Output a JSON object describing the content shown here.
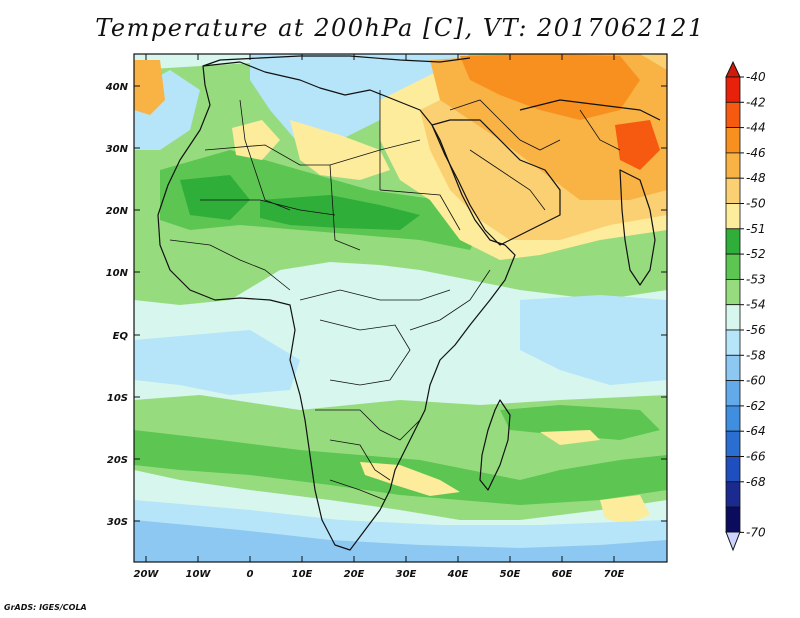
{
  "title": "Temperature at 200hPa [C], VT: 2017062121",
  "footer": "GrADS: IGES/COLA",
  "lon_labels": [
    "20W",
    "10W",
    "0",
    "10E",
    "20E",
    "30E",
    "40E",
    "50E",
    "60E",
    "70E"
  ],
  "lat_labels": [
    "40N",
    "30N",
    "20N",
    "10N",
    "EQ",
    "10S",
    "20S",
    "30S"
  ],
  "colorbar": {
    "labels": [
      "-40",
      "-42",
      "-44",
      "-46",
      "-48",
      "-50",
      "-51",
      "-52",
      "-53",
      "-54",
      "-56",
      "-58",
      "-60",
      "-62",
      "-64",
      "-66",
      "-68",
      "-70"
    ],
    "colors": [
      "#e8220a",
      "#f55a10",
      "#f7901e",
      "#f9b244",
      "#fbd072",
      "#fcec9c",
      "#2fae3a",
      "#5dc552",
      "#96dc7e",
      "#d6f6ee",
      "#b6e4f8",
      "#8cc8f2",
      "#62aaea",
      "#3f8ee0",
      "#2a6ed2",
      "#1f4fbe",
      "#1a2a8e",
      "#0c0c5e"
    ],
    "top_arrow_color": "#d01a0a",
    "bottom_arrow_color": "#cdd3ff"
  },
  "map": {
    "colors": {
      "deep_green": "#2fae3a",
      "green": "#5dc552",
      "light_green": "#96dc7e",
      "pale_cyan": "#d6f6ee",
      "light_blue": "#b6e4f8",
      "blue": "#8cc8f2",
      "pale_yellow": "#fcec9c",
      "yellow": "#fbd072",
      "light_orange": "#f9b244",
      "orange": "#f7901e",
      "red_orange": "#f55a10"
    }
  }
}
